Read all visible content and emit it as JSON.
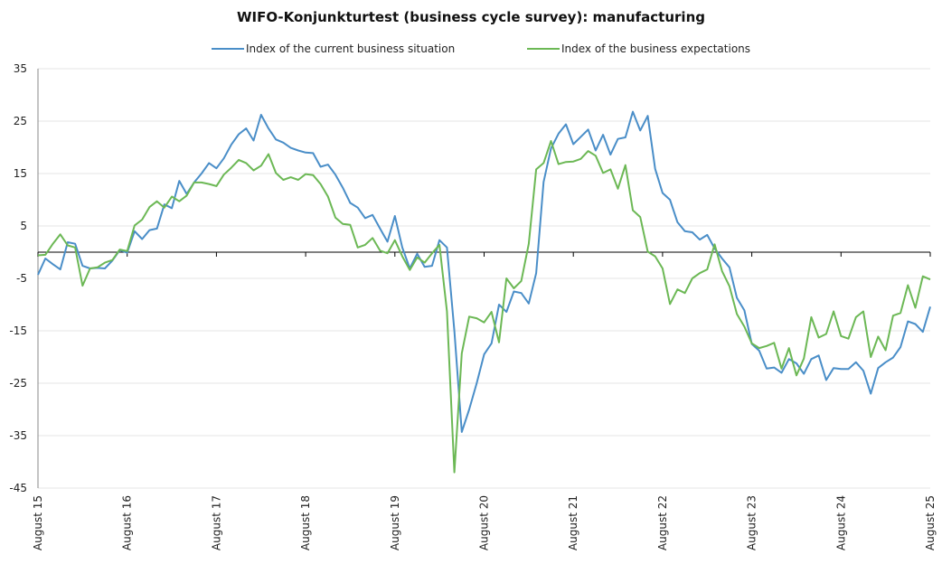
{
  "chart_data": {
    "type": "line",
    "title": "WIFO-Konjunkturtest (business cycle survey): manufacturing",
    "xlabel": "",
    "ylabel": "",
    "ylim": [
      -45,
      35
    ],
    "yticks": [
      35,
      25,
      15,
      5,
      -5,
      -15,
      -25,
      -35,
      -45
    ],
    "x_tick_labels": [
      "August 15",
      "August 16",
      "August 17",
      "August 18",
      "August 19",
      "August 20",
      "August 21",
      "August 22",
      "August 23",
      "August 24",
      "August 25"
    ],
    "grid": "horizontal",
    "legend_position": "top",
    "x_start": "2015-08",
    "x_end": "2025-08",
    "series": [
      {
        "name": "Index of the current business situation",
        "color": "#4a8ec8",
        "values": [
          -4.3,
          -1.2,
          -2.3,
          -3.3,
          1.9,
          1.6,
          -2.6,
          -3.1,
          -3.0,
          -3.1,
          -1.6,
          0.4,
          -0.1,
          4.0,
          2.5,
          4.2,
          4.5,
          9.1,
          8.4,
          13.6,
          11.1,
          13.3,
          15.0,
          17.0,
          16.0,
          17.9,
          20.5,
          22.5,
          23.6,
          21.3,
          26.2,
          23.6,
          21.5,
          20.9,
          19.9,
          19.4,
          19.0,
          18.9,
          16.3,
          16.7,
          14.8,
          12.3,
          9.4,
          8.5,
          6.5,
          7.1,
          4.5,
          2.0,
          6.9,
          0.9,
          -3.1,
          -0.3,
          -2.8,
          -2.6,
          2.3,
          0.9,
          -15.0,
          -34.3,
          -30.0,
          -25.0,
          -19.5,
          -17.4,
          -10.0,
          -11.4,
          -7.5,
          -7.8,
          -9.8,
          -4.0,
          13.4,
          19.8,
          22.6,
          24.4,
          20.6,
          22.0,
          23.4,
          19.4,
          22.4,
          18.6,
          21.6,
          21.9,
          26.8,
          23.2,
          26.0,
          15.9,
          11.3,
          10.0,
          5.7,
          4.0,
          3.8,
          2.4,
          3.3,
          0.7,
          -1.2,
          -2.9,
          -8.7,
          -11.1,
          -17.5,
          -18.8,
          -22.2,
          -22.0,
          -23.0,
          -20.4,
          -21.2,
          -23.2,
          -20.4,
          -19.7,
          -24.4,
          -22.1,
          -22.3,
          -22.3,
          -21.0,
          -22.6,
          -27.0,
          -22.1,
          -21.0,
          -20.1,
          -18.1,
          -13.2,
          -13.7,
          -15.2,
          -10.4
        ]
      },
      {
        "name": "Index of the business expectations",
        "color": "#6cb855",
        "values": [
          -0.6,
          -0.5,
          1.6,
          3.4,
          1.3,
          0.9,
          -6.4,
          -3.1,
          -2.9,
          -2.0,
          -1.5,
          0.5,
          0.2,
          5.1,
          6.2,
          8.6,
          9.7,
          8.5,
          10.6,
          9.7,
          10.8,
          13.3,
          13.3,
          13.0,
          12.6,
          14.8,
          16.1,
          17.6,
          17.0,
          15.6,
          16.5,
          18.7,
          15.1,
          13.8,
          14.3,
          13.8,
          14.9,
          14.7,
          13.0,
          10.6,
          6.6,
          5.4,
          5.2,
          0.9,
          1.4,
          2.7,
          0.3,
          -0.2,
          2.3,
          -0.8,
          -3.4,
          -1.0,
          -2.0,
          -0.2,
          1.4,
          -11.3,
          -42.0,
          -19.3,
          -12.3,
          -12.6,
          -13.4,
          -11.4,
          -17.2,
          -5.0,
          -6.9,
          -5.5,
          1.6,
          15.8,
          17.0,
          21.2,
          16.8,
          17.2,
          17.3,
          17.8,
          19.3,
          18.4,
          15.1,
          15.8,
          12.1,
          16.6,
          8.0,
          6.7,
          0.1,
          -0.8,
          -3.1,
          -9.9,
          -7.1,
          -7.8,
          -5.0,
          -4.0,
          -3.3,
          1.5,
          -3.6,
          -6.5,
          -11.8,
          -14.2,
          -17.4,
          -18.3,
          -17.9,
          -17.3,
          -22.2,
          -18.3,
          -23.5,
          -20.3,
          -12.4,
          -16.3,
          -15.6,
          -11.3,
          -16.0,
          -16.5,
          -12.4,
          -11.3,
          -20.0,
          -16.1,
          -18.7,
          -12.1,
          -11.6,
          -6.3,
          -10.6,
          -4.6,
          -5.2
        ]
      }
    ]
  }
}
